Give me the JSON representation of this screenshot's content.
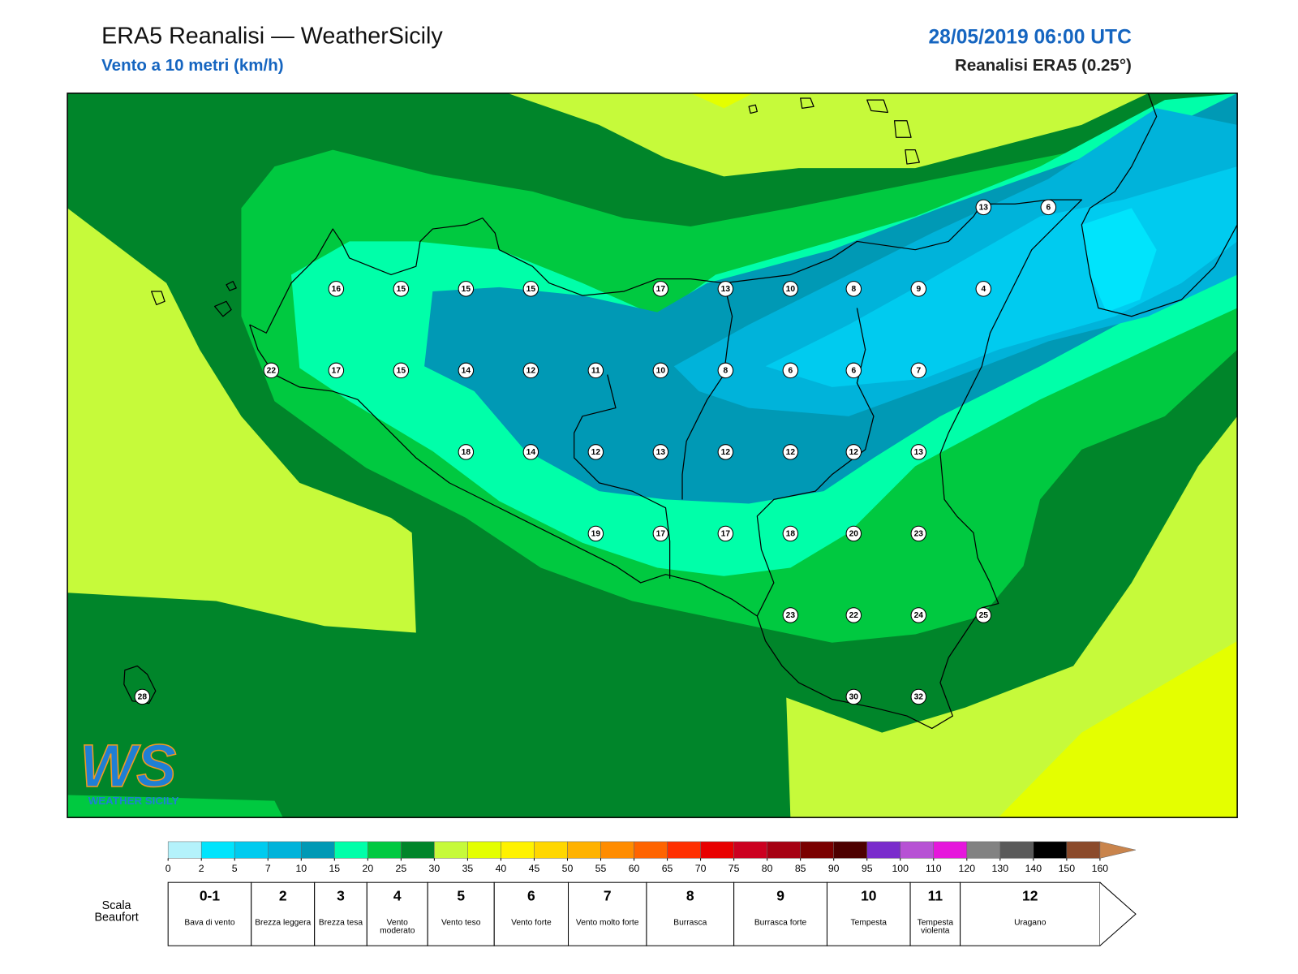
{
  "header": {
    "title": "ERA5 Reanalisi — WeatherSicily",
    "subtitle": "Vento a 10 metri (km/h)",
    "datetime": "28/05/2019 06:00 UTC",
    "source": "Reanalisi ERA5 (0.25°)"
  },
  "stations": [
    13,
    6,
    16,
    15,
    15,
    15,
    17,
    13,
    10,
    8,
    9,
    4,
    22,
    17,
    15,
    14,
    12,
    11,
    10,
    8,
    6,
    6,
    7,
    18,
    14,
    12,
    13,
    12,
    12,
    12,
    13,
    19,
    17,
    17,
    18,
    20,
    23,
    23,
    22,
    24,
    25,
    28,
    30,
    32
  ],
  "colorbar": {
    "ticks": [
      0,
      2,
      5,
      7,
      10,
      15,
      20,
      25,
      30,
      35,
      40,
      45,
      50,
      55,
      60,
      65,
      70,
      75,
      80,
      85,
      90,
      95,
      100,
      110,
      120,
      130,
      140,
      150,
      160
    ],
    "colors": [
      "#b4f2fb",
      "#00e4fc",
      "#00cbef",
      "#00b3da",
      "#0099b5",
      "#00ffa9",
      "#00c940",
      "#00852a",
      "#c6fa3a",
      "#e4ff00",
      "#fff200",
      "#ffd700",
      "#ffb200",
      "#ff8c00",
      "#ff6400",
      "#ff2f00",
      "#e80000",
      "#cc0020",
      "#a60012",
      "#7a0000",
      "#4d0000",
      "#7a2ccc",
      "#b752d4",
      "#e617dc",
      "#828282",
      "#5a5a5a",
      "#000000",
      "#8b4a2b",
      "#c9844c"
    ]
  },
  "beaufort": {
    "label": "Scala Beaufort",
    "levels": [
      {
        "force": "0-1",
        "description": "Bava di vento"
      },
      {
        "force": "2",
        "description": "Brezza leggera"
      },
      {
        "force": "3",
        "description": "Brezza tesa"
      },
      {
        "force": "4",
        "description": "Vento moderato"
      },
      {
        "force": "5",
        "description": "Vento teso"
      },
      {
        "force": "6",
        "description": "Vento forte"
      },
      {
        "force": "7",
        "description": "Vento molto forte"
      },
      {
        "force": "8",
        "description": "Burrasca"
      },
      {
        "force": "9",
        "description": "Burrasca forte"
      },
      {
        "force": "10",
        "description": "Tempesta"
      },
      {
        "force": "11",
        "description": "Tempesta violenta"
      },
      {
        "force": "12",
        "description": "Uragano"
      }
    ]
  },
  "logo": {
    "mark": "WS",
    "name": "WEATHER SICILY"
  }
}
